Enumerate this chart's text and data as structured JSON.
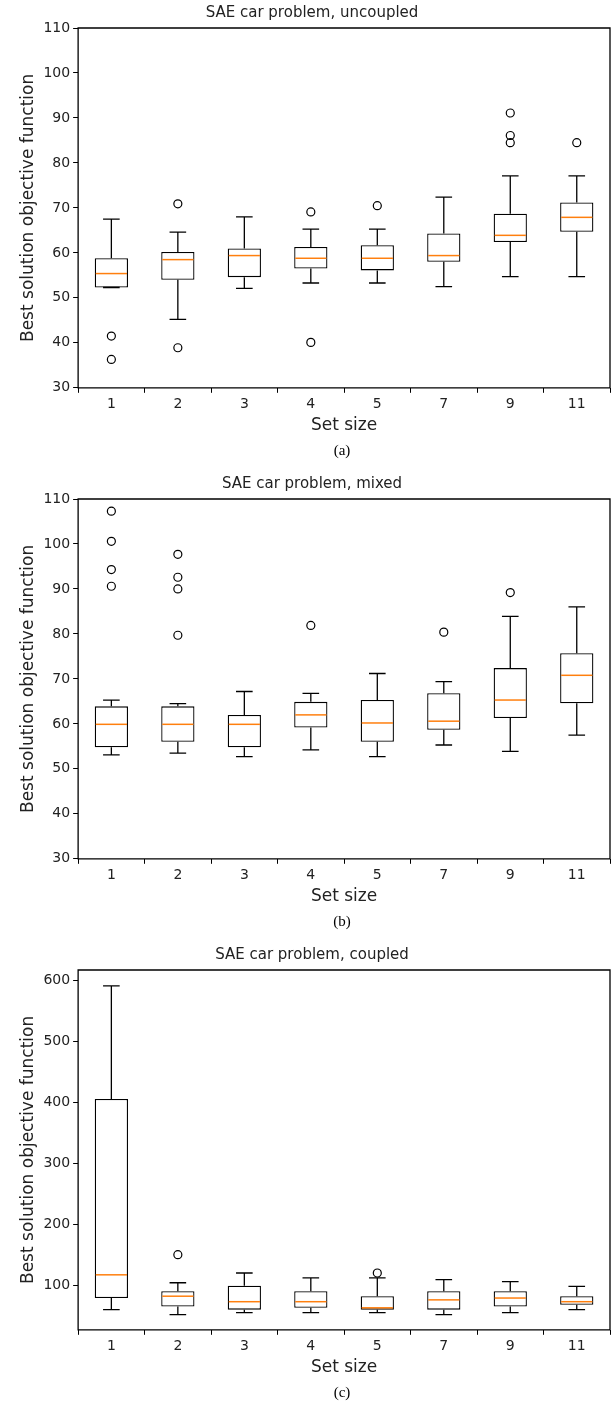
{
  "chart_data": [
    {
      "type": "box",
      "title": "SAE car problem, uncoupled",
      "xlabel": "Set size",
      "ylabel": "Best solution objective function",
      "categories": [
        "1",
        "2",
        "3",
        "4",
        "5",
        "7",
        "9",
        "11"
      ],
      "ylim": [
        30,
        110
      ],
      "yticks": [
        30,
        40,
        50,
        60,
        70,
        80,
        90,
        100,
        110
      ],
      "annotations": [
        "(a)"
      ],
      "boxes": [
        {
          "low": 52.3,
          "q1": 52.3,
          "median": 55.4,
          "q3": 58.8,
          "high": 67.5,
          "outliers": [
            41.5,
            36.3
          ]
        },
        {
          "low": 45.2,
          "q1": 54,
          "median": 58.5,
          "q3": 60.2,
          "high": 64.6,
          "outliers": [
            70.9,
            38.9
          ]
        },
        {
          "low": 52.1,
          "q1": 54.6,
          "median": 59.4,
          "q3": 61,
          "high": 68
        },
        {
          "low": 53.3,
          "q1": 56.5,
          "median": 58.8,
          "q3": 61.3,
          "high": 65.3,
          "outliers": [
            69.1,
            40.1
          ]
        },
        {
          "low": 53.3,
          "q1": 56.1,
          "median": 58.8,
          "q3": 61.7,
          "high": 65.3,
          "outliers": [
            70.5
          ]
        },
        {
          "low": 52.5,
          "q1": 58,
          "median": 59.4,
          "q3": 64.3,
          "high": 72.4
        },
        {
          "low": 54.7,
          "q1": 62.4,
          "median": 63.9,
          "q3": 68.7,
          "high": 77.1,
          "outliers": [
            91.1,
            86.1,
            84.5
          ]
        },
        {
          "low": 54.7,
          "q1": 64.7,
          "median": 67.9,
          "q3": 71.2,
          "high": 77.1,
          "outliers": [
            84.5
          ]
        }
      ]
    },
    {
      "type": "box",
      "title": "SAE car problem, mixed",
      "xlabel": "Set size",
      "ylabel": "Best solution objective function",
      "categories": [
        "1",
        "2",
        "3",
        "4",
        "5",
        "7",
        "9",
        "11"
      ],
      "ylim": [
        30,
        110
      ],
      "yticks": [
        30,
        40,
        50,
        60,
        70,
        80,
        90,
        100,
        110
      ],
      "annotations": [
        "(b)"
      ],
      "boxes": [
        {
          "low": 53.1,
          "q1": 54.8,
          "median": 59.9,
          "q3": 63.9,
          "high": 65.3,
          "outliers": [
            107.3,
            100.6,
            94.3,
            90.6
          ]
        },
        {
          "low": 53.5,
          "q1": 56,
          "median": 59.9,
          "q3": 63.9,
          "high": 64.5,
          "outliers": [
            97.7,
            92.6,
            90,
            79.7
          ]
        },
        {
          "low": 52.7,
          "q1": 54.8,
          "median": 59.9,
          "q3": 62,
          "high": 67.2
        },
        {
          "low": 54.2,
          "q1": 59.2,
          "median": 62,
          "q3": 64.9,
          "high": 66.8,
          "outliers": [
            81.9
          ]
        },
        {
          "low": 52.7,
          "q1": 56,
          "median": 60.2,
          "q3": 65.3,
          "high": 71.2
        },
        {
          "low": 55.3,
          "q1": 58.7,
          "median": 60.6,
          "q3": 66.8,
          "high": 69.4,
          "outliers": [
            80.4
          ]
        },
        {
          "low": 53.9,
          "q1": 61.3,
          "median": 65.3,
          "q3": 72.4,
          "high": 83.9,
          "outliers": [
            89.2
          ]
        },
        {
          "low": 57.5,
          "q1": 64.6,
          "median": 70.8,
          "q3": 75.7,
          "high": 86
        }
      ]
    },
    {
      "type": "box",
      "title": "SAE car problem, coupled",
      "xlabel": "Set size",
      "ylabel": "Best solution objective function",
      "categories": [
        "1",
        "2",
        "3",
        "4",
        "5",
        "7",
        "9",
        "11"
      ],
      "ylim": [
        28,
        617
      ],
      "yticks": [
        100,
        200,
        300,
        400,
        500,
        600
      ],
      "annotations": [
        "(c)"
      ],
      "boxes": [
        {
          "low": 61,
          "q1": 80,
          "median": 118,
          "q3": 406,
          "high": 591
        },
        {
          "low": 53,
          "q1": 66,
          "median": 83,
          "q3": 91,
          "high": 105,
          "outliers": [
            151
          ]
        },
        {
          "low": 56,
          "q1": 61,
          "median": 74,
          "q3": 100,
          "high": 121
        },
        {
          "low": 56,
          "q1": 64,
          "median": 74,
          "q3": 91,
          "high": 113
        },
        {
          "low": 56,
          "q1": 61,
          "median": 64,
          "q3": 83,
          "high": 113,
          "outliers": [
            121
          ]
        },
        {
          "low": 53,
          "q1": 61,
          "median": 77,
          "q3": 91,
          "high": 110
        },
        {
          "low": 56,
          "q1": 66,
          "median": 80,
          "q3": 91,
          "high": 107
        },
        {
          "low": 61,
          "q1": 69,
          "median": 74,
          "q3": 83,
          "high": 99
        }
      ]
    }
  ]
}
